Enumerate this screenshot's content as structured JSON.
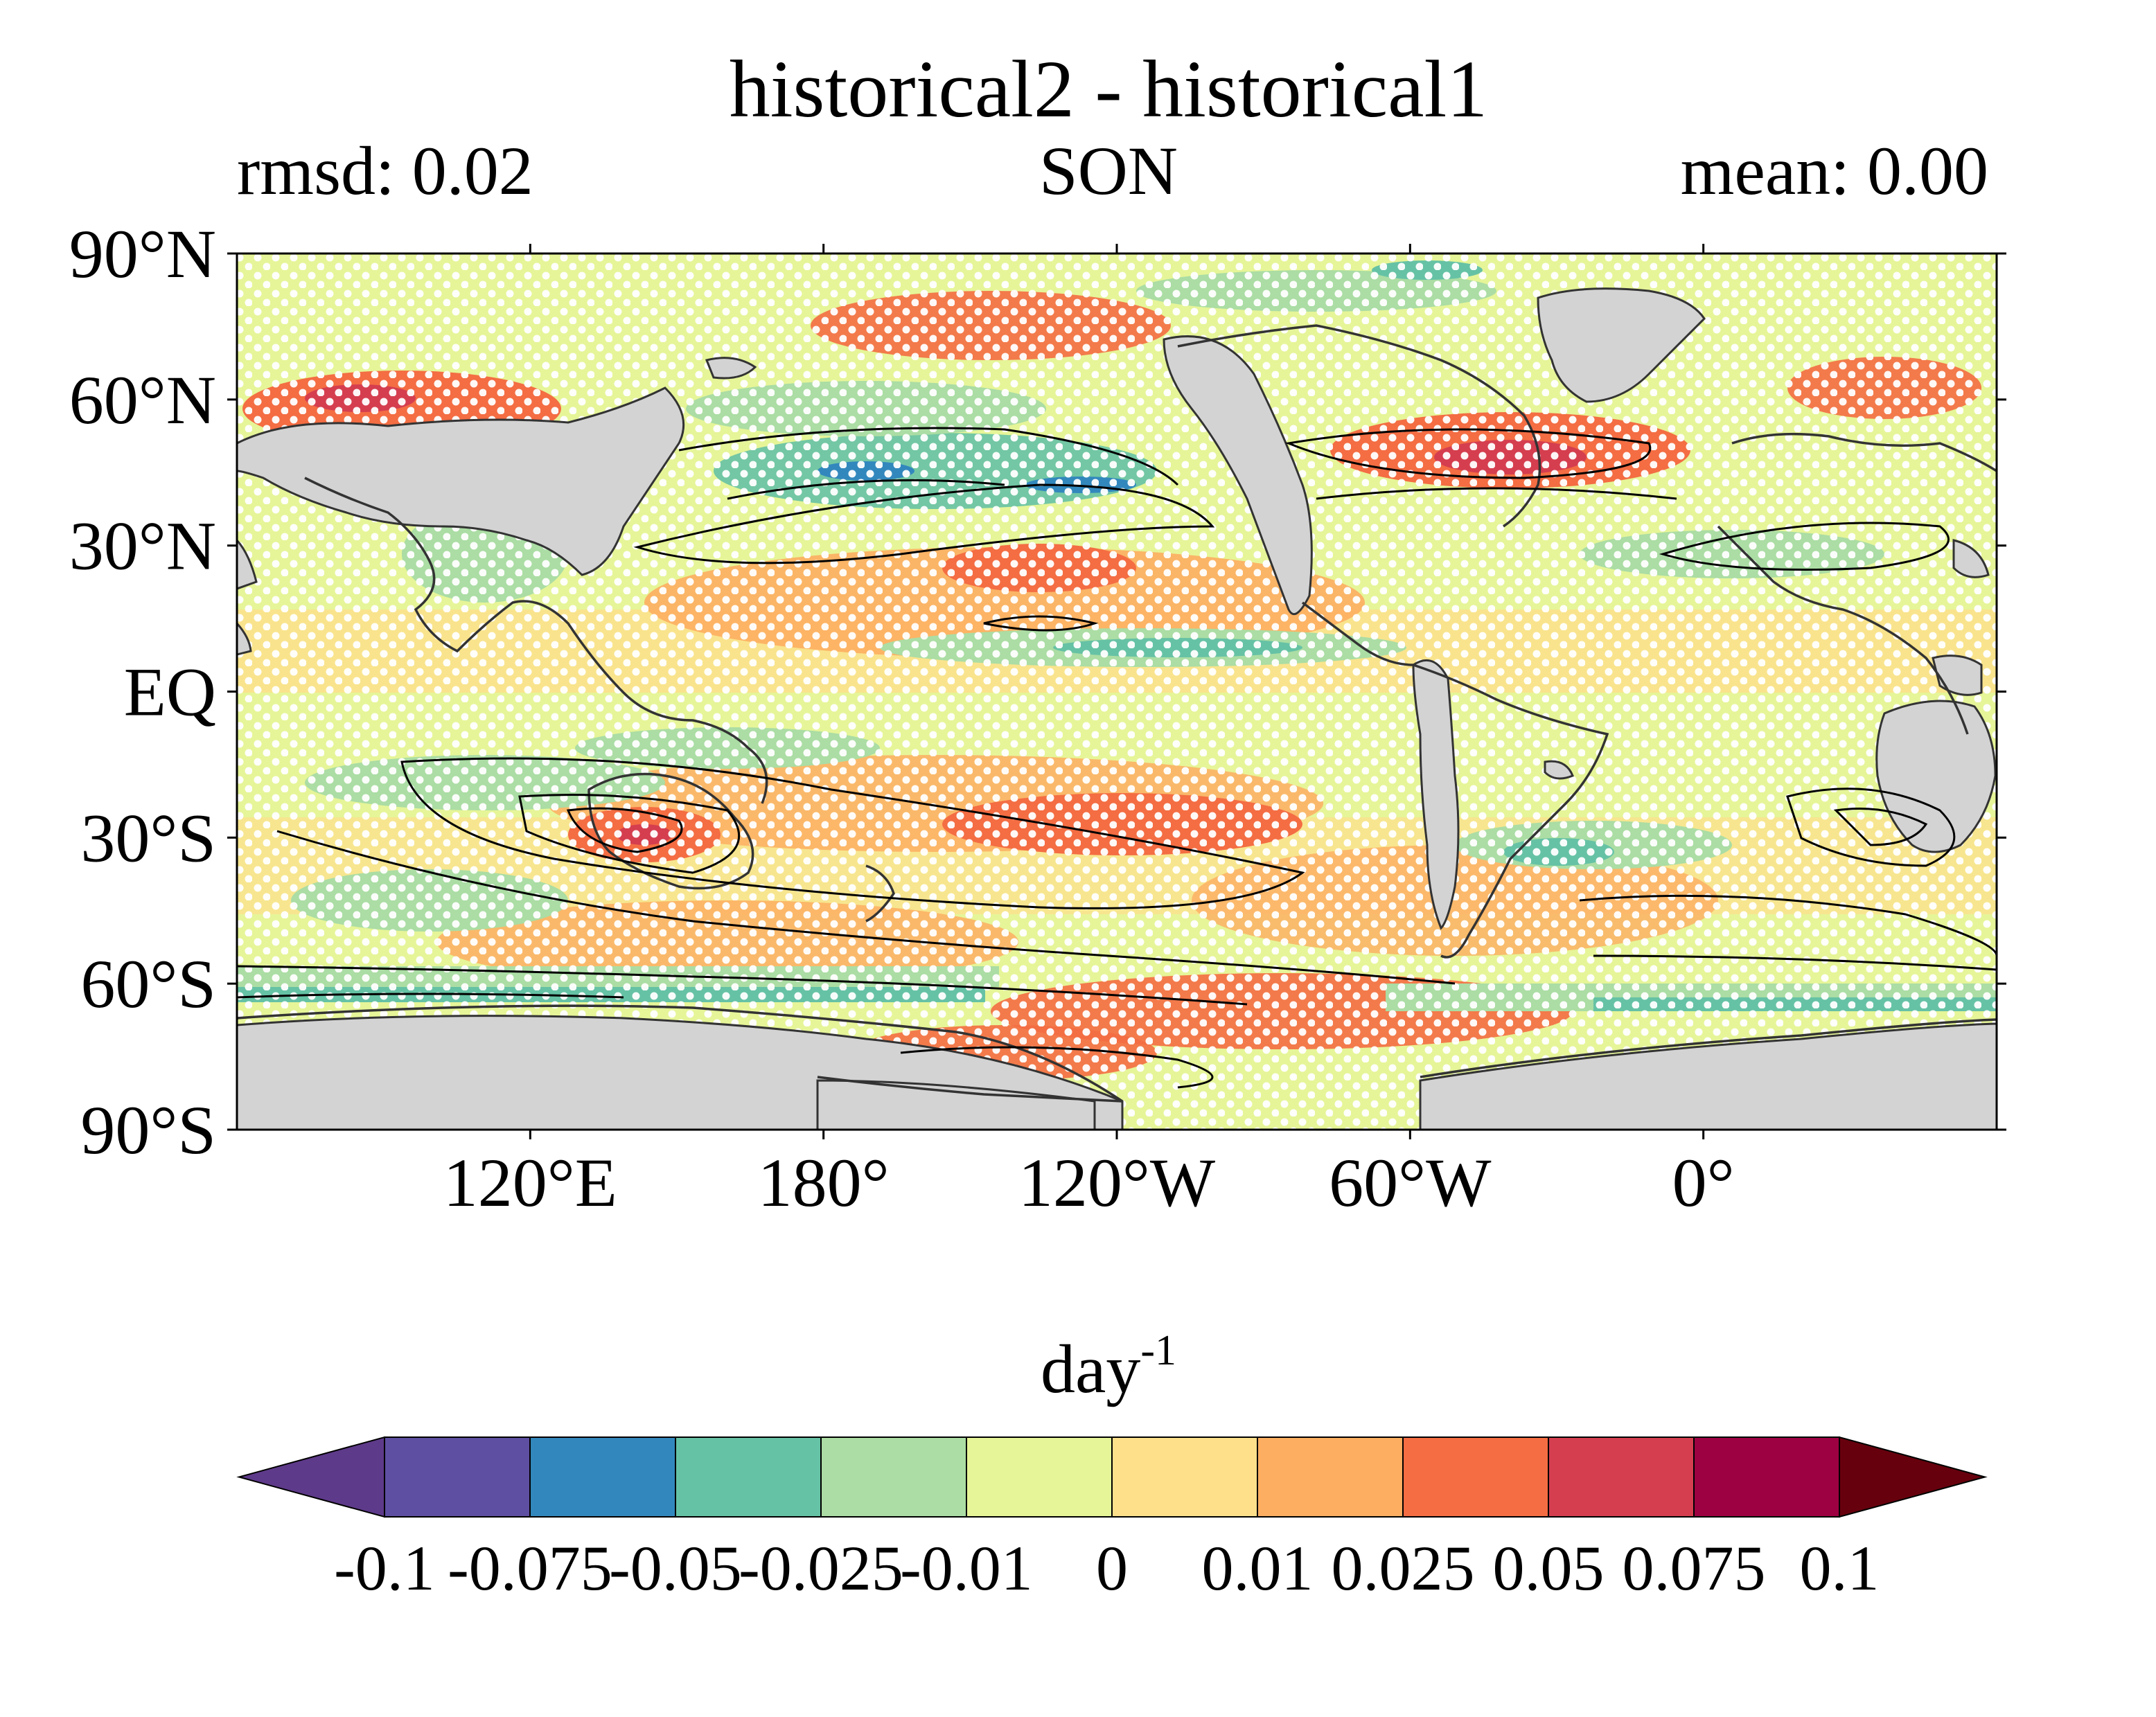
{
  "title": "historical2 - historical1",
  "subtitle_left": "rmsd: 0.02",
  "subtitle_center": "SON",
  "subtitle_right": "mean: 0.00",
  "map": {
    "lon_range_center_180": true,
    "y_ticks": [
      "90°N",
      "60°N",
      "30°N",
      "EQ",
      "30°S",
      "60°S",
      "90°S"
    ],
    "y_tick_lats": [
      90,
      60,
      30,
      0,
      -30,
      -60,
      -90
    ],
    "x_ticks": [
      "120°E",
      "180°",
      "120°W",
      "60°W",
      "0°"
    ],
    "x_tick_lons": [
      120,
      180,
      240,
      300,
      360
    ],
    "land_color": "#d3d3d3",
    "stipple_color": "#ffffff",
    "contour_color": "#000000"
  },
  "colorbar": {
    "label": "day",
    "label_exponent": "-1",
    "tick_labels": [
      "-0.1",
      "-0.075",
      "-0.05",
      "-0.025",
      "-0.01",
      "0",
      "0.01",
      "0.025",
      "0.05",
      "0.075",
      "0.1"
    ],
    "under_color": "#5e3a8a",
    "over_color": "#67000d",
    "colors": [
      "#5e4fa2",
      "#3288bd",
      "#66c2a5",
      "#abdda4",
      "#e6f598",
      "#fee08b",
      "#fdae61",
      "#f46d43",
      "#d53e4f",
      "#9e0142"
    ]
  }
}
